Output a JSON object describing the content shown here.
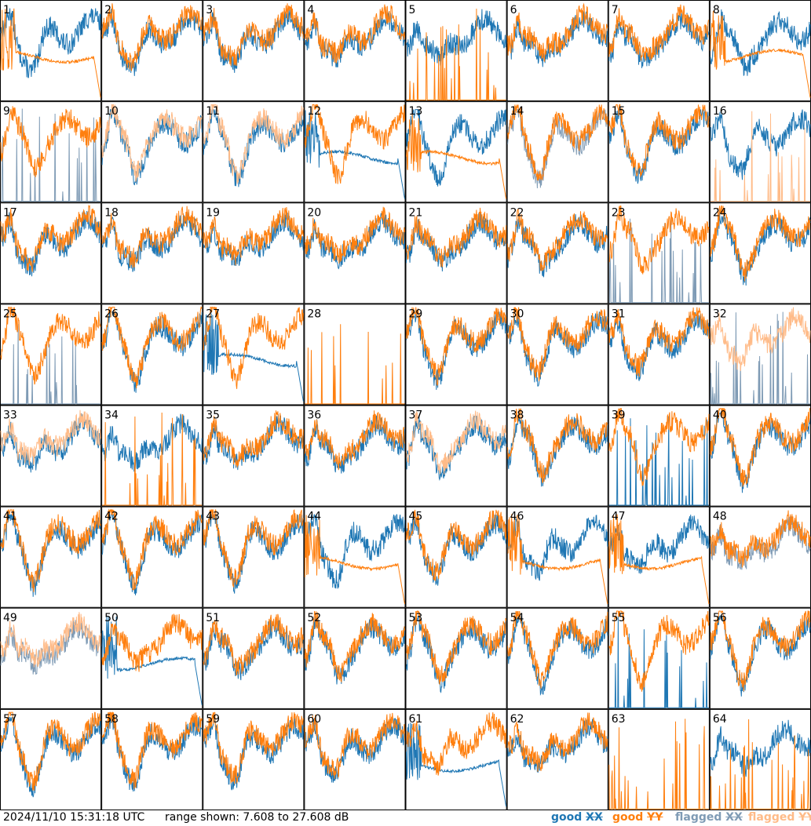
{
  "footer": {
    "timestamp": "2024/11/10 15:31:18 UTC",
    "range_text": "range shown: 7.608 to 27.608 dB"
  },
  "legend": [
    {
      "word": "good",
      "pol": "XX",
      "color": "#1f77b4"
    },
    {
      "word": "good",
      "pol": "YY",
      "color": "#ff7f0e"
    },
    {
      "word": "flagged",
      "pol": "XX",
      "color": "#7f9bb5"
    },
    {
      "word": "flagged",
      "pol": "YY",
      "color": "#ffbb88"
    }
  ],
  "chart_data": {
    "type": "line",
    "grid": {
      "rows": 8,
      "cols": 8
    },
    "ylim": [
      7.608,
      27.608
    ],
    "units": "dB",
    "colors": {
      "good_xx": "#1f77b4",
      "good_yy": "#ff7f0e",
      "flagged_xx": "#7f9bb5",
      "flagged_yy": "#ffbb88"
    },
    "panels": [
      {
        "label": "1",
        "xx": "good",
        "yy": "rolloff"
      },
      {
        "label": "2",
        "xx": "good",
        "yy": "good"
      },
      {
        "label": "3",
        "xx": "good",
        "yy": "good"
      },
      {
        "label": "4",
        "xx": "good",
        "yy": "good"
      },
      {
        "label": "5",
        "xx": "good",
        "yy": "spikes"
      },
      {
        "label": "6",
        "xx": "good",
        "yy": "good"
      },
      {
        "label": "7",
        "xx": "good",
        "yy": "good"
      },
      {
        "label": "8",
        "xx": "good",
        "yy": "rolloff"
      },
      {
        "label": "9",
        "xx": "flagged-spikes",
        "yy": "good"
      },
      {
        "label": "10",
        "xx": "good",
        "yy": "flagged"
      },
      {
        "label": "11",
        "xx": "good",
        "yy": "flagged"
      },
      {
        "label": "12",
        "xx": "rolloff",
        "yy": "good"
      },
      {
        "label": "13",
        "xx": "good",
        "yy": "rolloff"
      },
      {
        "label": "14",
        "xx": "flagged",
        "yy": "good"
      },
      {
        "label": "15",
        "xx": "good",
        "yy": "good"
      },
      {
        "label": "16",
        "xx": "good",
        "yy": "flagged-spikes"
      },
      {
        "label": "17",
        "xx": "good",
        "yy": "good"
      },
      {
        "label": "18",
        "xx": "good",
        "yy": "good"
      },
      {
        "label": "19",
        "xx": "good",
        "yy": "good"
      },
      {
        "label": "20",
        "xx": "good",
        "yy": "good"
      },
      {
        "label": "21",
        "xx": "good",
        "yy": "good"
      },
      {
        "label": "22",
        "xx": "good",
        "yy": "good"
      },
      {
        "label": "23",
        "xx": "flagged-spikes",
        "yy": "good"
      },
      {
        "label": "24",
        "xx": "good",
        "yy": "good"
      },
      {
        "label": "25",
        "xx": "flagged-spikes",
        "yy": "good"
      },
      {
        "label": "26",
        "xx": "good",
        "yy": "good"
      },
      {
        "label": "27",
        "xx": "rolloff",
        "yy": "good"
      },
      {
        "label": "28",
        "xx": "none",
        "yy": "spikes"
      },
      {
        "label": "29",
        "xx": "good",
        "yy": "good"
      },
      {
        "label": "30",
        "xx": "good",
        "yy": "good"
      },
      {
        "label": "31",
        "xx": "good",
        "yy": "good"
      },
      {
        "label": "32",
        "xx": "flagged-spikes",
        "yy": "flagged"
      },
      {
        "label": "33",
        "xx": "good",
        "yy": "flagged"
      },
      {
        "label": "34",
        "xx": "good",
        "yy": "spikes"
      },
      {
        "label": "35",
        "xx": "good",
        "yy": "good"
      },
      {
        "label": "36",
        "xx": "good",
        "yy": "good"
      },
      {
        "label": "37",
        "xx": "good",
        "yy": "flagged"
      },
      {
        "label": "38",
        "xx": "good",
        "yy": "good"
      },
      {
        "label": "39",
        "xx": "spikes",
        "yy": "good"
      },
      {
        "label": "40",
        "xx": "good",
        "yy": "good"
      },
      {
        "label": "41",
        "xx": "good",
        "yy": "good"
      },
      {
        "label": "42",
        "xx": "good",
        "yy": "good"
      },
      {
        "label": "43",
        "xx": "good",
        "yy": "good"
      },
      {
        "label": "44",
        "xx": "good",
        "yy": "rolloff"
      },
      {
        "label": "45",
        "xx": "good",
        "yy": "good"
      },
      {
        "label": "46",
        "xx": "good",
        "yy": "rolloff"
      },
      {
        "label": "47",
        "xx": "good",
        "yy": "rolloff"
      },
      {
        "label": "48",
        "xx": "flagged",
        "yy": "good"
      },
      {
        "label": "49",
        "xx": "flagged",
        "yy": "flagged"
      },
      {
        "label": "50",
        "xx": "rolloff",
        "yy": "good"
      },
      {
        "label": "51",
        "xx": "good",
        "yy": "good"
      },
      {
        "label": "52",
        "xx": "good",
        "yy": "good"
      },
      {
        "label": "53",
        "xx": "good",
        "yy": "good"
      },
      {
        "label": "54",
        "xx": "good",
        "yy": "good"
      },
      {
        "label": "55",
        "xx": "spikes",
        "yy": "good"
      },
      {
        "label": "56",
        "xx": "good",
        "yy": "good"
      },
      {
        "label": "57",
        "xx": "good",
        "yy": "good"
      },
      {
        "label": "58",
        "xx": "good",
        "yy": "good"
      },
      {
        "label": "59",
        "xx": "good",
        "yy": "good"
      },
      {
        "label": "60",
        "xx": "good",
        "yy": "good"
      },
      {
        "label": "61",
        "xx": "rolloff",
        "yy": "good"
      },
      {
        "label": "62",
        "xx": "good",
        "yy": "good"
      },
      {
        "label": "63",
        "xx": "none",
        "yy": "spikes"
      },
      {
        "label": "64",
        "xx": "good",
        "yy": "spikes"
      }
    ]
  }
}
